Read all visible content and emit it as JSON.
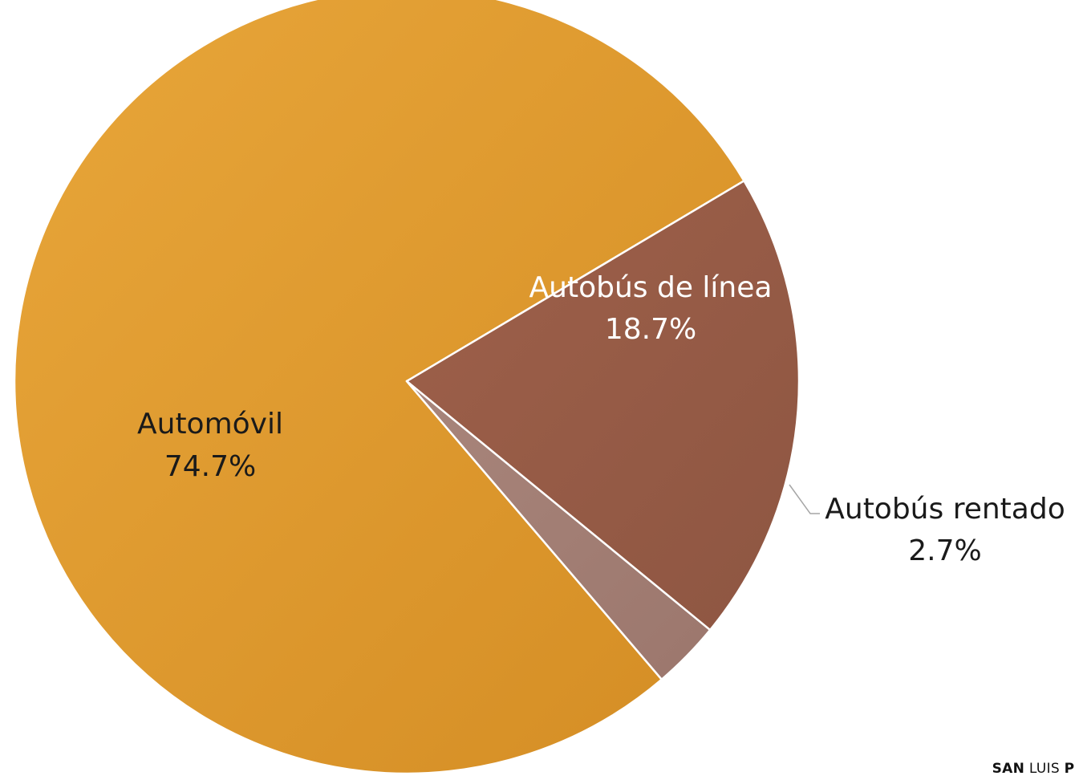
{
  "chart_data": {
    "type": "pie",
    "title": "",
    "categories": [
      "Automóvil",
      "Autobús de línea",
      "Autobús rentado"
    ],
    "values": [
      74.7,
      18.7,
      2.7
    ],
    "value_labels": [
      "74.7%",
      "18.7%",
      "2.7%"
    ],
    "colors": [
      "#dd9a33",
      "#955c48",
      "#a27c72"
    ],
    "legend": "none",
    "data_labels": "category-and-percent"
  },
  "footer": {
    "brand_part1": "SAN",
    "brand_part2": "LUIS",
    "brand_part3": "POTOSÍ"
  }
}
